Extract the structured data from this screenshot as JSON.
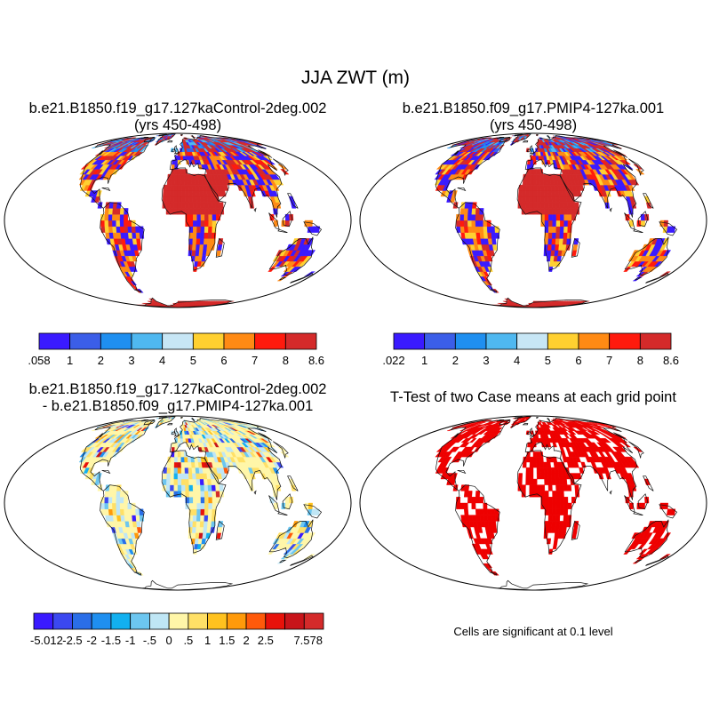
{
  "figure": {
    "title": "JJA ZWT (m)",
    "note": "Cells are significant at 0.1 level"
  },
  "chart_data": [
    {
      "type": "heatmap",
      "panel": "top-left",
      "title": "b.e21.B1850.f19_g17.127kaControl-2deg.002",
      "subtitle": "(yrs 450-498)",
      "colorbar": {
        "labels": [
          ".058",
          "1",
          "2",
          "3",
          "4",
          "5",
          "6",
          "7",
          "8",
          "8.6"
        ],
        "colors": [
          "#3a1aff",
          "#3b5ee8",
          "#1f8ff0",
          "#4fb8f0",
          "#c7e6f5",
          "#ffd030",
          "#ff8a14",
          "#ff1a0d",
          "#d42a2a"
        ]
      }
    },
    {
      "type": "heatmap",
      "panel": "top-right",
      "title": "b.e21.B1850.f09_g17.PMIP4-127ka.001",
      "subtitle": "(yrs 450-498)",
      "colorbar": {
        "labels": [
          ".022",
          "1",
          "2",
          "3",
          "4",
          "5",
          "6",
          "7",
          "8",
          "8.6"
        ],
        "colors": [
          "#3a1aff",
          "#3b5ee8",
          "#1f8ff0",
          "#4fb8f0",
          "#c7e6f5",
          "#ffd030",
          "#ff8a14",
          "#ff1a0d",
          "#d42a2a"
        ]
      }
    },
    {
      "type": "heatmap",
      "panel": "bottom-left",
      "title": "b.e21.B1850.f19_g17.127kaControl-2deg.002",
      "subtitle": "- b.e21.B1850.f09_g17.PMIP4-127ka.001",
      "colorbar": {
        "labels": [
          "-5.012",
          "-2.5",
          "-2",
          "-1.5",
          "-1",
          "-.5",
          "0",
          ".5",
          "1",
          "1.5",
          "2",
          "2.5",
          "7.578"
        ],
        "colors": [
          "#3a1aff",
          "#3b48f0",
          "#2a6ee8",
          "#1f8ff0",
          "#12b0f0",
          "#6cc6f0",
          "#bfe6f5",
          "#fff6a8",
          "#ffe066",
          "#ffc21f",
          "#ff9a0a",
          "#ff5a0a",
          "#e8120a",
          "#c8141a",
          "#d42a2a"
        ]
      }
    },
    {
      "type": "heatmap",
      "panel": "bottom-right",
      "title": "T-Test of two Case means at each grid point",
      "significant_color": "#ee0000"
    }
  ]
}
